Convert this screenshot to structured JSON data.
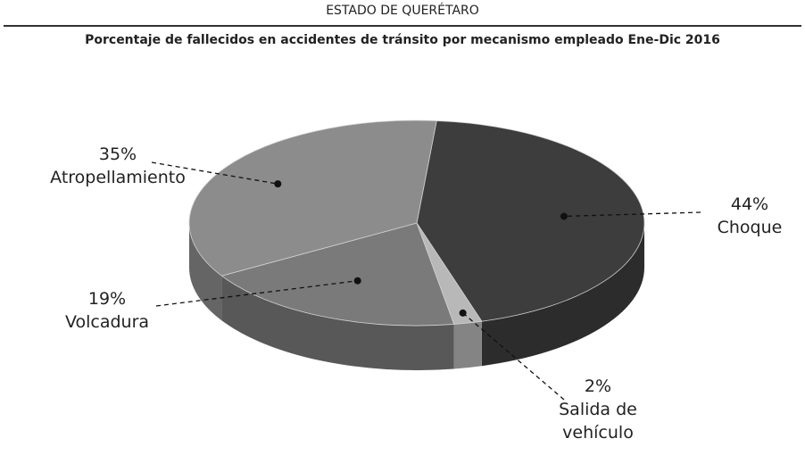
{
  "chart_data": {
    "type": "pie3d",
    "header": "ESTADO DE QUERÉTARO",
    "title": "Porcentaje de fallecidos en accidentes de tránsito por mecanismo empleado Ene-Dic 2016",
    "categories": [
      "Choque",
      "Salida de vehículo",
      "Volcadura",
      "Atropellamiento"
    ],
    "values": [
      44,
      2,
      19,
      35
    ],
    "value_labels": [
      "44%",
      "2%",
      "19%",
      "35%"
    ],
    "colors": [
      "#3d3d3d",
      "#b8b8b8",
      "#7a7a7a",
      "#8c8c8c"
    ]
  }
}
